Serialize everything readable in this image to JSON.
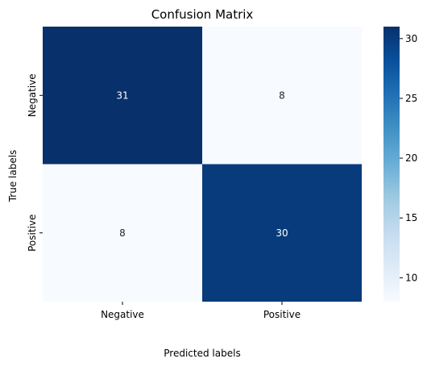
{
  "chart_data": {
    "type": "heatmap",
    "title": "Confusion Matrix",
    "xlabel": "Predicted labels",
    "ylabel": "True labels",
    "x_categories": [
      "Negative",
      "Positive"
    ],
    "y_categories": [
      "Negative",
      "Positive"
    ],
    "values": [
      [
        31,
        8
      ],
      [
        8,
        30
      ]
    ],
    "colorbar": {
      "min": 8,
      "max": 31,
      "ticks": [
        10,
        15,
        20,
        25,
        30
      ],
      "colormap": "Blues",
      "color_low": "#f7fbff",
      "color_high": "#08306b"
    },
    "annotations": true,
    "grid": false,
    "legend": "colorbar-right"
  }
}
